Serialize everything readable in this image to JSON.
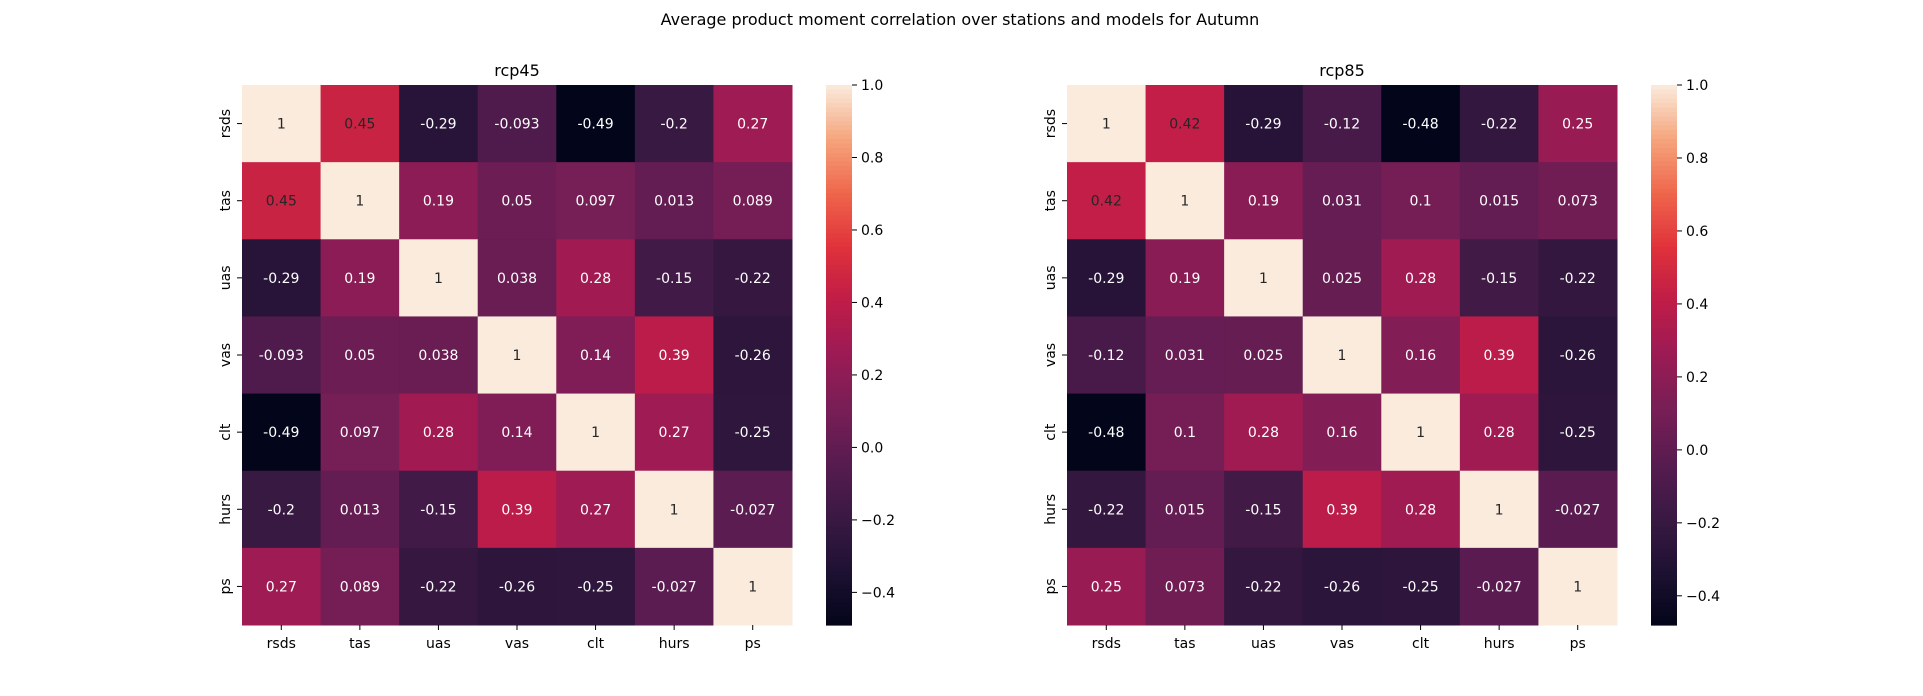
{
  "figure": {
    "title": "Average product moment correlation over stations and models for Autumn"
  },
  "chart_data": [
    {
      "type": "heatmap",
      "title": "rcp45",
      "xlabel": "",
      "ylabel": "",
      "categories_x": [
        "rsds",
        "tas",
        "uas",
        "vas",
        "clt",
        "hurs",
        "ps"
      ],
      "categories_y": [
        "rsds",
        "tas",
        "uas",
        "vas",
        "clt",
        "hurs",
        "ps"
      ],
      "values": [
        [
          1,
          0.45,
          -0.29,
          -0.093,
          -0.49,
          -0.2,
          0.27
        ],
        [
          0.45,
          1,
          0.19,
          0.05,
          0.097,
          0.013,
          0.089
        ],
        [
          -0.29,
          0.19,
          1,
          0.038,
          0.28,
          -0.15,
          -0.22
        ],
        [
          -0.093,
          0.05,
          0.038,
          1,
          0.14,
          0.39,
          -0.26
        ],
        [
          -0.49,
          0.097,
          0.28,
          0.14,
          1,
          0.27,
          -0.25
        ],
        [
          -0.2,
          0.013,
          -0.15,
          0.39,
          0.27,
          1,
          -0.027
        ],
        [
          0.27,
          0.089,
          -0.22,
          -0.26,
          -0.25,
          -0.027,
          1
        ]
      ],
      "labels": [
        [
          "1",
          "0.45",
          "-0.29",
          "-0.093",
          "-0.49",
          "-0.2",
          "0.27"
        ],
        [
          "0.45",
          "1",
          "0.19",
          "0.05",
          "0.097",
          "0.013",
          "0.089"
        ],
        [
          "-0.29",
          "0.19",
          "1",
          "0.038",
          "0.28",
          "-0.15",
          "-0.22"
        ],
        [
          "-0.093",
          "0.05",
          "0.038",
          "1",
          "0.14",
          "0.39",
          "-0.26"
        ],
        [
          "-0.49",
          "0.097",
          "0.28",
          "0.14",
          "1",
          "0.27",
          "-0.25"
        ],
        [
          "-0.2",
          "0.013",
          "-0.15",
          "0.39",
          "0.27",
          "1",
          "-0.027"
        ],
        [
          "0.27",
          "0.089",
          "-0.22",
          "-0.26",
          "-0.25",
          "-0.027",
          "1"
        ]
      ],
      "colorbar": {
        "vmin": -0.49,
        "vmax": 1,
        "ticks": [
          -0.4,
          -0.2,
          0.0,
          0.2,
          0.4,
          0.6,
          0.8,
          1.0
        ],
        "tick_labels": [
          "−0.4",
          "−0.2",
          "0.0",
          "0.2",
          "0.4",
          "0.6",
          "0.8",
          "1.0"
        ]
      },
      "colormap": "rocket"
    },
    {
      "type": "heatmap",
      "title": "rcp85",
      "xlabel": "",
      "ylabel": "",
      "categories_x": [
        "rsds",
        "tas",
        "uas",
        "vas",
        "clt",
        "hurs",
        "ps"
      ],
      "categories_y": [
        "rsds",
        "tas",
        "uas",
        "vas",
        "clt",
        "hurs",
        "ps"
      ],
      "values": [
        [
          1,
          0.42,
          -0.29,
          -0.12,
          -0.48,
          -0.22,
          0.25
        ],
        [
          0.42,
          1,
          0.19,
          0.031,
          0.1,
          0.015,
          0.073
        ],
        [
          -0.29,
          0.19,
          1,
          0.025,
          0.28,
          -0.15,
          -0.22
        ],
        [
          -0.12,
          0.031,
          0.025,
          1,
          0.16,
          0.39,
          -0.26
        ],
        [
          -0.48,
          0.1,
          0.28,
          0.16,
          1,
          0.28,
          -0.25
        ],
        [
          -0.22,
          0.015,
          -0.15,
          0.39,
          0.28,
          1,
          -0.027
        ],
        [
          0.25,
          0.073,
          -0.22,
          -0.26,
          -0.25,
          -0.027,
          1
        ]
      ],
      "labels": [
        [
          "1",
          "0.42",
          "-0.29",
          "-0.12",
          "-0.48",
          "-0.22",
          "0.25"
        ],
        [
          "0.42",
          "1",
          "0.19",
          "0.031",
          "0.1",
          "0.015",
          "0.073"
        ],
        [
          "-0.29",
          "0.19",
          "1",
          "0.025",
          "0.28",
          "-0.15",
          "-0.22"
        ],
        [
          "-0.12",
          "0.031",
          "0.025",
          "1",
          "0.16",
          "0.39",
          "-0.26"
        ],
        [
          "-0.48",
          "0.1",
          "0.28",
          "0.16",
          "1",
          "0.28",
          "-0.25"
        ],
        [
          "-0.22",
          "0.015",
          "-0.15",
          "0.39",
          "0.28",
          "1",
          "-0.027"
        ],
        [
          "0.25",
          "0.073",
          "-0.22",
          "-0.26",
          "-0.25",
          "-0.027",
          "1"
        ]
      ],
      "colorbar": {
        "vmin": -0.48,
        "vmax": 1,
        "ticks": [
          -0.4,
          -0.2,
          0.0,
          0.2,
          0.4,
          0.6,
          0.8,
          1.0
        ],
        "tick_labels": [
          "−0.4",
          "−0.2",
          "0.0",
          "0.2",
          "0.4",
          "0.6",
          "0.8",
          "1.0"
        ]
      },
      "colormap": "rocket"
    }
  ]
}
